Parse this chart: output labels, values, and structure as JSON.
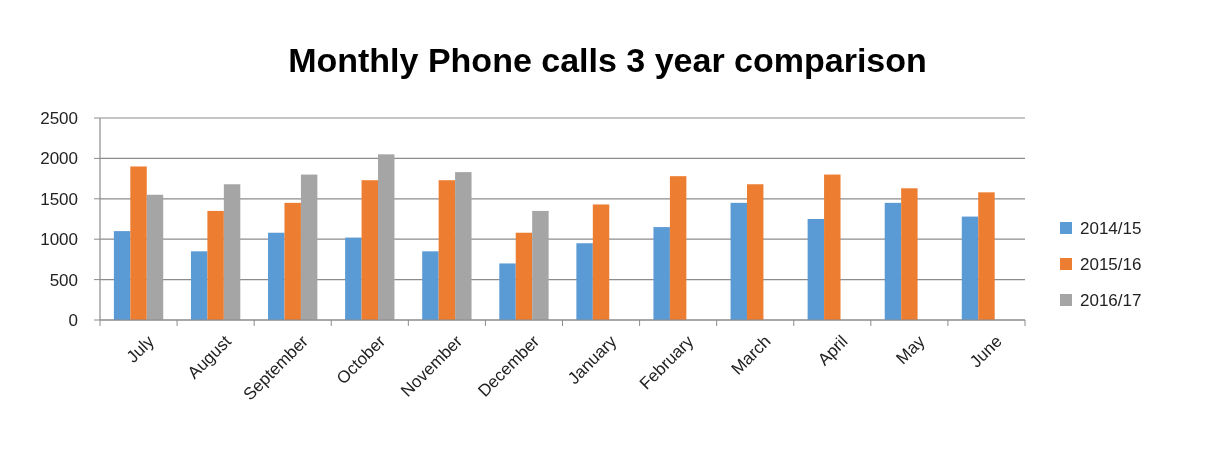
{
  "chart_data": {
    "type": "bar",
    "title": "Monthly Phone calls 3 year comparison",
    "categories": [
      "July",
      "August",
      "September",
      "October",
      "November",
      "December",
      "January",
      "February",
      "March",
      "April",
      "May",
      "June"
    ],
    "series": [
      {
        "name": "2014/15",
        "color": "#5b9bd5",
        "values": [
          1100,
          850,
          1080,
          1020,
          850,
          700,
          950,
          1150,
          1450,
          1250,
          1450,
          1280
        ]
      },
      {
        "name": "2015/16",
        "color": "#ed7d31",
        "values": [
          1900,
          1350,
          1450,
          1730,
          1730,
          1080,
          1430,
          1780,
          1680,
          1800,
          1630,
          1580
        ]
      },
      {
        "name": "2016/17",
        "color": "#a5a5a5",
        "values": [
          1550,
          1680,
          1800,
          2050,
          1830,
          1350,
          null,
          null,
          null,
          null,
          null,
          null
        ]
      }
    ],
    "ylim": [
      0,
      2500
    ],
    "yticks": [
      0,
      500,
      1000,
      1500,
      2000,
      2500
    ],
    "grid": "y",
    "legend": "right"
  }
}
